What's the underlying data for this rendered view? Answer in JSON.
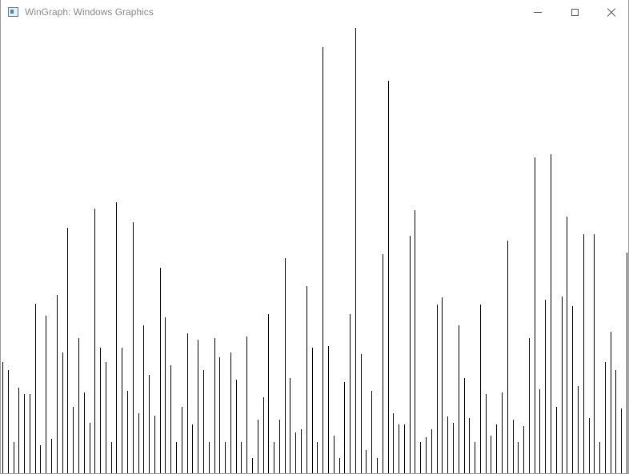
{
  "window": {
    "title": "WinGraph: Windows Graphics",
    "icon": "app-window-icon",
    "controls": {
      "minimize": "minimize-icon",
      "maximize": "maximize-icon",
      "close": "close-icon"
    }
  },
  "chart_data": {
    "type": "bar",
    "title": "",
    "xlabel": "",
    "ylabel": "",
    "grid": false,
    "color": "#000000",
    "background": "#ffffff",
    "values": [
      140,
      130,
      40,
      108,
      100,
      100,
      213,
      36,
      198,
      44,
      224,
      152,
      308,
      84,
      170,
      102,
      64,
      332,
      158,
      140,
      40,
      340,
      158,
      104,
      315,
      76,
      186,
      124,
      73,
      258,
      196,
      136,
      40,
      84,
      176,
      62,
      168,
      130,
      40,
      170,
      146,
      40,
      152,
      118,
      40,
      172,
      20,
      68,
      96,
      200,
      40,
      68,
      270,
      120,
      52,
      56,
      235,
      158,
      40,
      534,
      160,
      48,
      20,
      115,
      200,
      558,
      150,
      30,
      104,
      20,
      275,
      492,
      76,
      62,
      62,
      298,
      330,
      40,
      46,
      56,
      212,
      221,
      72,
      64,
      186,
      120,
      70,
      40,
      212,
      100,
      48,
      62,
      102,
      292,
      68,
      40,
      60,
      170,
      396,
      106,
      218,
      400,
      84,
      222,
      322,
      210,
      110,
      300,
      70,
      300,
      40,
      140,
      178,
      130,
      82,
      277
    ]
  }
}
